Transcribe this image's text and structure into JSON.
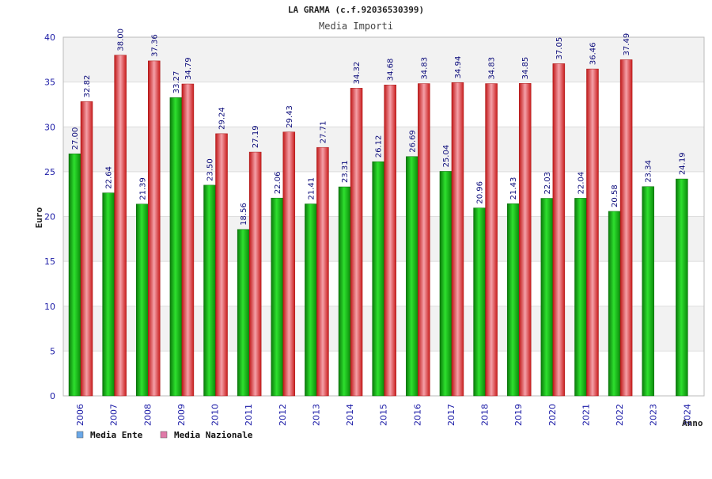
{
  "chart_data": {
    "type": "bar",
    "title": "LA GRAMA (c.f.92036530399)",
    "subtitle": "Media Importi",
    "xlabel": "Anno",
    "ylabel": "Euro",
    "ylim": [
      0,
      40
    ],
    "yticks": [
      0,
      5,
      10,
      15,
      20,
      25,
      30,
      35,
      40
    ],
    "grid": true,
    "legend_position": "bottom-left",
    "categories": [
      "2006",
      "2007",
      "2008",
      "2009",
      "2010",
      "2011",
      "2012",
      "2013",
      "2014",
      "2015",
      "2016",
      "2017",
      "2018",
      "2019",
      "2020",
      "2021",
      "2022",
      "2023",
      "2024"
    ],
    "series": [
      {
        "name": "Media Ente",
        "color": "#13b813",
        "values": [
          27.0,
          22.64,
          21.39,
          33.27,
          23.5,
          18.56,
          22.06,
          21.41,
          23.31,
          26.12,
          26.69,
          25.04,
          20.96,
          21.43,
          22.03,
          22.04,
          20.58,
          23.34,
          24.19
        ],
        "labels": [
          "27.00",
          "22.64",
          "21.39",
          "33.27",
          "23.50",
          "18.56",
          "22.06",
          "21.41",
          "23.31",
          "26.12",
          "26.69",
          "25.04",
          "20.96",
          "21.43",
          "22.03",
          "22.04",
          "20.58",
          "23.34",
          "24.19"
        ]
      },
      {
        "name": "Media Nazionale",
        "color": "#e02a2a",
        "values": [
          32.82,
          38.0,
          37.36,
          34.79,
          29.24,
          27.19,
          29.43,
          27.71,
          34.32,
          34.68,
          34.83,
          34.94,
          34.83,
          34.85,
          37.05,
          36.46,
          37.49,
          null,
          null
        ],
        "labels": [
          "32.82",
          "38.00",
          "37.36",
          "34.79",
          "29.24",
          "27.19",
          "29.43",
          "27.71",
          "34.32",
          "34.68",
          "34.83",
          "34.94",
          "34.83",
          "34.85",
          "37.05",
          "36.46",
          "37.49",
          "",
          ""
        ]
      }
    ],
    "legend": [
      {
        "name": "Media Ente",
        "color": "#6aa8e8"
      },
      {
        "name": "Media Nazionale",
        "color": "#e07aa8"
      }
    ],
    "band_colors": [
      "#f2f2f2",
      "#ffffff"
    ]
  }
}
